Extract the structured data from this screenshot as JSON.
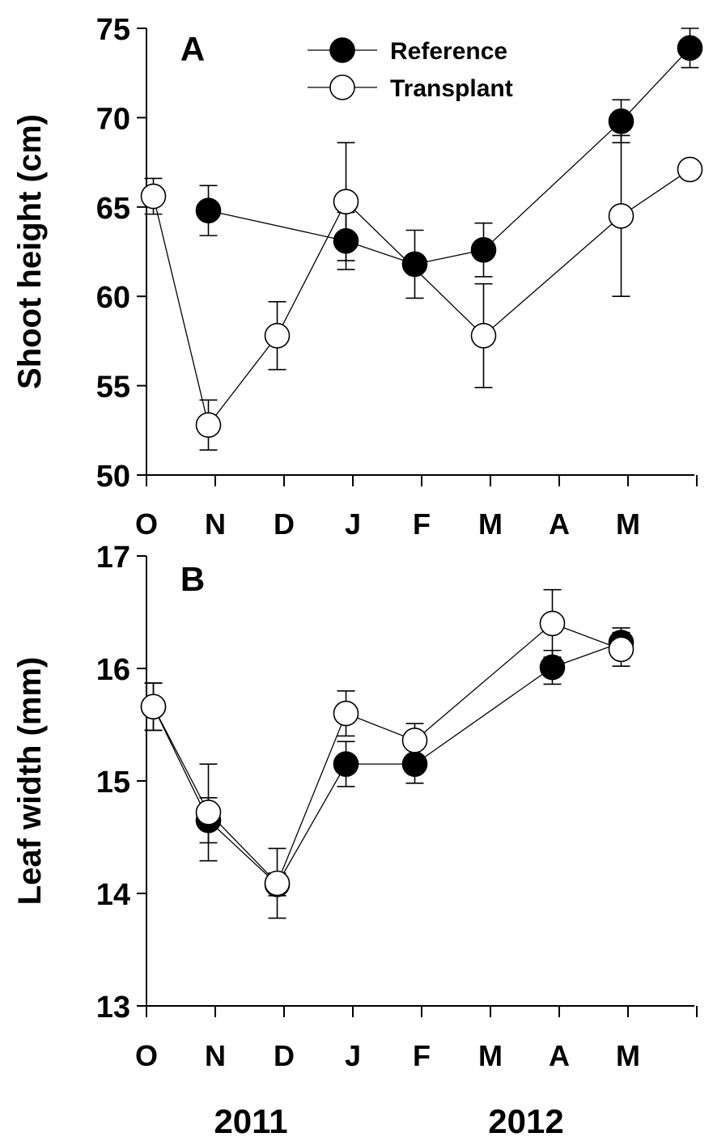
{
  "chart_data": [
    {
      "type": "line",
      "panel_label": "A",
      "ylabel": "Shoot height (cm)",
      "ylim": [
        50,
        75
      ],
      "yticks": [
        50,
        55,
        60,
        65,
        70,
        75
      ],
      "x_month_labels": [
        "O",
        "N",
        "D",
        "J",
        "F",
        "M",
        "A",
        "M"
      ],
      "legend": {
        "placement": "top-center",
        "entries": [
          {
            "label": "Reference",
            "marker": "filled-circle"
          },
          {
            "label": "Transplant",
            "marker": "open-circle"
          }
        ]
      },
      "series": [
        {
          "name": "Reference",
          "marker": "filled",
          "points": [
            {
              "month": 0.4,
              "y": 64.8,
              "err": 1.4
            },
            {
              "month": 2.4,
              "y": 63.1,
              "err": 1.6
            },
            {
              "month": 3.4,
              "y": 61.8,
              "err": 1.9
            },
            {
              "month": 4.4,
              "y": 62.6,
              "err": 1.5
            },
            {
              "month": 6.4,
              "y": 69.8,
              "err": 1.2
            },
            {
              "month": 7.4,
              "y": 73.9,
              "err": 1.1
            }
          ]
        },
        {
          "name": "Transplant",
          "marker": "open",
          "points": [
            {
              "month": -0.4,
              "y": 65.6,
              "err": 1.0
            },
            {
              "month": 0.4,
              "y": 52.8,
              "err": 1.4
            },
            {
              "month": 1.4,
              "y": 57.8,
              "err": 1.9
            },
            {
              "month": 2.4,
              "y": 65.3,
              "err": 3.3
            },
            {
              "month": 4.4,
              "y": 57.8,
              "err": 2.9
            },
            {
              "month": 6.4,
              "y": 64.5,
              "err": 4.5
            },
            {
              "month": 7.4,
              "y": 67.1,
              "err": 0.5
            }
          ]
        }
      ]
    },
    {
      "type": "line",
      "panel_label": "B",
      "ylabel": "Leaf width (mm)",
      "ylim": [
        13,
        17
      ],
      "yticks": [
        13,
        14,
        15,
        16,
        17
      ],
      "x_month_labels": [
        "O",
        "N",
        "D",
        "J",
        "F",
        "M",
        "A",
        "M"
      ],
      "x_year_labels": [
        "2011",
        "2012"
      ],
      "series": [
        {
          "name": "Reference",
          "marker": "filled",
          "points": [
            {
              "month": -0.4,
              "y": 15.66,
              "err": 0.21
            },
            {
              "month": 0.4,
              "y": 14.65,
              "err": 0.2
            },
            {
              "month": 1.4,
              "y": 14.08,
              "err": 0.1
            },
            {
              "month": 2.4,
              "y": 15.15,
              "err": 0.2
            },
            {
              "month": 3.4,
              "y": 15.15,
              "err": 0.17
            },
            {
              "month": 5.4,
              "y": 16.01,
              "err": 0.15
            },
            {
              "month": 6.4,
              "y": 16.23,
              "err": 0.13
            }
          ]
        },
        {
          "name": "Transplant",
          "marker": "open",
          "points": [
            {
              "month": -0.4,
              "y": 15.66,
              "err": 0.21
            },
            {
              "month": 0.4,
              "y": 14.72,
              "err": 0.43
            },
            {
              "month": 1.4,
              "y": 14.09,
              "err": 0.31
            },
            {
              "month": 2.4,
              "y": 15.6,
              "err": 0.2
            },
            {
              "month": 3.4,
              "y": 15.36,
              "err": 0.15
            },
            {
              "month": 5.4,
              "y": 16.4,
              "err": 0.3
            },
            {
              "month": 6.4,
              "y": 16.17,
              "err": 0.15
            }
          ]
        }
      ]
    }
  ]
}
